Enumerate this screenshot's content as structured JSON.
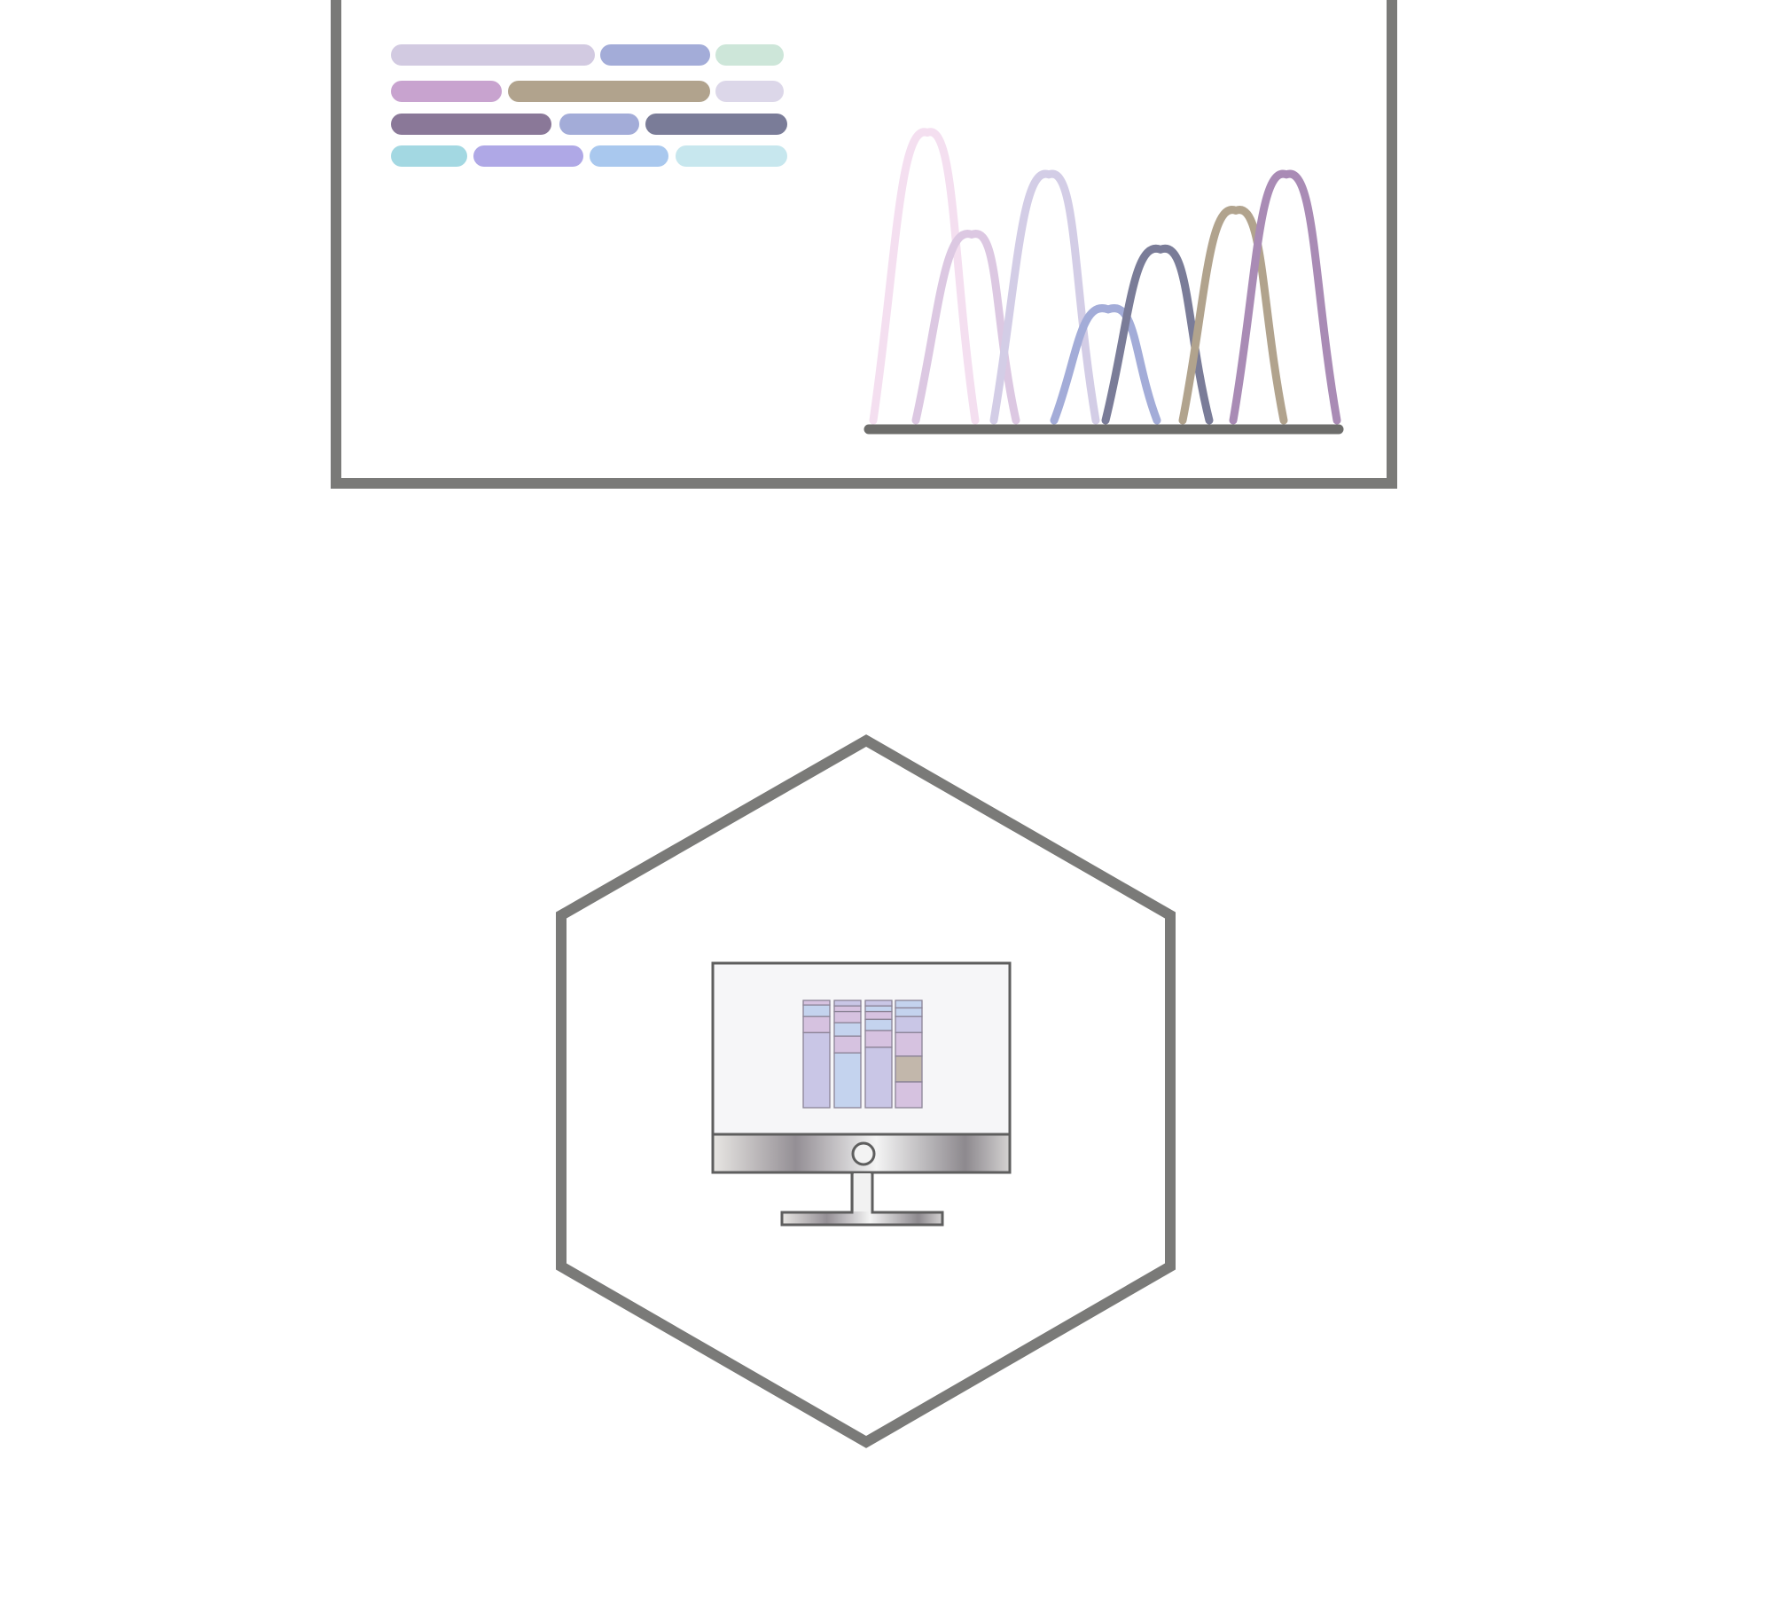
{
  "colors": {
    "frame": "#7a7a78",
    "axis": "#6d6d6b",
    "monitor_outline": "#5e5e5e",
    "screen_bg": "#f6f6f8"
  },
  "read_panel": {
    "bar_rows": [
      [
        "#d2cae1",
        "#a3acd8",
        "#cde6d9"
      ],
      [
        "#c8a3cf",
        "#b1a38d",
        "#dcd7e9"
      ],
      [
        "#8a7898",
        "#a3acd8",
        "#7a7c98"
      ],
      [
        "#a3d8e2",
        "#afa8e6",
        "#a9c8ee",
        "#c7e7ee"
      ]
    ],
    "peaks": [
      {
        "color": "#f4dff0",
        "height": 0.96
      },
      {
        "color": "#dcc8e2",
        "height": 0.62
      },
      {
        "color": "#d3cde6",
        "height": 0.82
      },
      {
        "color": "#a3acd8",
        "height": 0.37
      },
      {
        "color": "#7a7c98",
        "height": 0.57
      },
      {
        "color": "#b1a38d",
        "height": 0.7
      },
      {
        "color": "#a98bb5",
        "height": 0.82
      }
    ]
  },
  "computer_node": {
    "icon": "computer-monitor-icon",
    "screen_glyph": "stacked-bar-icon",
    "stacked_columns": [
      [
        {
          "color": "#d6c2e0",
          "fraction": 0.04
        },
        {
          "color": "#c4d3ee",
          "fraction": 0.1
        },
        {
          "color": "#d6c2e0",
          "fraction": 0.14
        },
        {
          "color": "#c9c6e6",
          "fraction": 0.65
        }
      ],
      [
        {
          "color": "#c9c6e6",
          "fraction": 0.05
        },
        {
          "color": "#d6c2e0",
          "fraction": 0.05
        },
        {
          "color": "#d6c2e0",
          "fraction": 0.1
        },
        {
          "color": "#c4d3ee",
          "fraction": 0.12
        },
        {
          "color": "#d6c2e0",
          "fraction": 0.15
        },
        {
          "color": "#c4d3ee",
          "fraction": 0.49
        }
      ],
      [
        {
          "color": "#c9c6e6",
          "fraction": 0.05
        },
        {
          "color": "#c4d3ee",
          "fraction": 0.05
        },
        {
          "color": "#d6c2e0",
          "fraction": 0.07
        },
        {
          "color": "#c4d3ee",
          "fraction": 0.1
        },
        {
          "color": "#d6c2e0",
          "fraction": 0.15
        },
        {
          "color": "#c9c6e6",
          "fraction": 0.54
        }
      ],
      [
        {
          "color": "#c4d3ee",
          "fraction": 0.07
        },
        {
          "color": "#c4d3ee",
          "fraction": 0.08
        },
        {
          "color": "#c9c6e6",
          "fraction": 0.15
        },
        {
          "color": "#d6c2e0",
          "fraction": 0.22
        },
        {
          "color": "#c2b7ab",
          "fraction": 0.24
        },
        {
          "color": "#d6c2e0",
          "fraction": 0.24
        }
      ]
    ]
  }
}
